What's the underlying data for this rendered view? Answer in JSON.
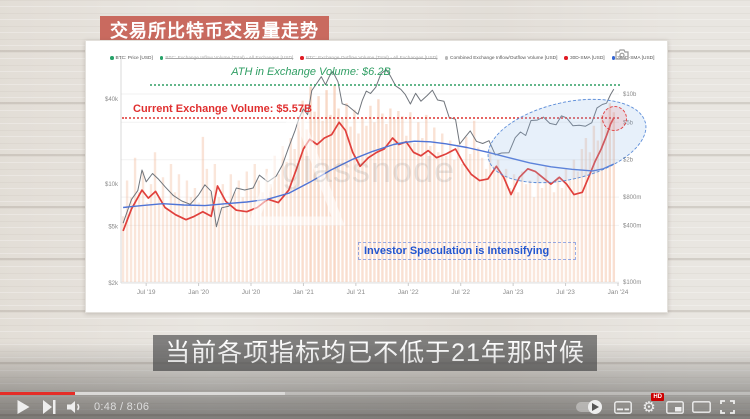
{
  "video": {
    "title_banner": "交易所比特币交易量走势",
    "caption": "当前各项指标均已不低于21年那时候"
  },
  "player": {
    "time_display": "0:48 / 8:06",
    "progress_percent": 10,
    "buffered_percent": 38,
    "settings_badge": "HD",
    "icons": [
      "play-icon",
      "next-icon",
      "volume-icon",
      "autoplay-toggle",
      "subtitles-icon",
      "settings-gear-icon",
      "miniplayer-icon",
      "theater-icon",
      "fullscreen-icon"
    ]
  },
  "chart": {
    "watermark": "glassnode",
    "legend": [
      {
        "label": "BTC: Price [USD]",
        "color": "#26a269",
        "disabled": false
      },
      {
        "label": "BTC: Exchange Inflow Volume (Total) - All Exchanges [USD]",
        "color": "#26a269",
        "disabled": true
      },
      {
        "label": "BTC: Exchange Outflow Volume (Total) - All Exchanges [USD]",
        "color": "#e01b24",
        "disabled": true
      },
      {
        "label": "Combined Exchange Inflow/Outflow Volume [USD]",
        "color": "#b8b8b8",
        "disabled": false
      },
      {
        "label": "30D-SMA [USD]",
        "color": "#e01b24",
        "disabled": false
      },
      {
        "label": "365D-SMA [USD]",
        "color": "#3465d4",
        "disabled": false
      }
    ]
  },
  "chart_data": {
    "type": "line",
    "subtype": "mixed line + volume bars, dual log axes",
    "x_axis": {
      "range_years": [
        2019.3,
        2024.05
      ],
      "ticks": [
        {
          "label": "Jul '19",
          "t": 2019.54
        },
        {
          "label": "Jan '20",
          "t": 2020.04
        },
        {
          "label": "Jul '20",
          "t": 2020.54
        },
        {
          "label": "Jan '21",
          "t": 2021.04
        },
        {
          "label": "Jul '21",
          "t": 2021.54
        },
        {
          "label": "Jan '22",
          "t": 2022.04
        },
        {
          "label": "Jul '22",
          "t": 2022.54
        },
        {
          "label": "Jan '23",
          "t": 2023.04
        },
        {
          "label": "Jul '23",
          "t": 2023.54
        },
        {
          "label": "Jan '24",
          "t": 2024.04
        }
      ]
    },
    "y_left": {
      "title": "BTC Price (USD)",
      "scale": "log",
      "ticks": [
        {
          "label": "$40k",
          "value": 40
        },
        {
          "label": "$10k",
          "value": 10
        },
        {
          "label": "$5k",
          "value": 5
        },
        {
          "label": "$2k",
          "value": 2
        }
      ]
    },
    "y_right": {
      "title": "Exchange Volume (USD)",
      "scale": "log",
      "ticks": [
        {
          "label": "$10b",
          "value": 10
        },
        {
          "label": "$5b",
          "value": 5
        },
        {
          "label": "$2b",
          "value": 2
        },
        {
          "label": "$800m",
          "value": 0.8
        },
        {
          "label": "$400m",
          "value": 0.4
        },
        {
          "label": "$100m",
          "value": 0.1
        }
      ]
    },
    "annotations": [
      {
        "id": "ath",
        "text": "ATH in Exchange Volume: $6.2B",
        "value": "$6.2B",
        "color": "#2f9e63"
      },
      {
        "id": "current",
        "text": "Current Exchange Volume: $5.57B",
        "value": "$5.57B",
        "color": "#e02f2f"
      },
      {
        "id": "speculation",
        "text": "Investor Speculation is Intensifying",
        "color": "#2356cf"
      }
    ],
    "series": [
      {
        "name": "BTC: Price [USD]",
        "type": "line",
        "axis": "left",
        "unit": "USD thousands",
        "color": "#70757c",
        "width": 1,
        "points": [
          [
            2019.32,
            5.3
          ],
          [
            2019.4,
            7.8
          ],
          [
            2019.46,
            9.0
          ],
          [
            2019.5,
            12.6
          ],
          [
            2019.54,
            10.4
          ],
          [
            2019.6,
            11.9
          ],
          [
            2019.66,
            10.8
          ],
          [
            2019.72,
            9.6
          ],
          [
            2019.8,
            8.3
          ],
          [
            2019.88,
            7.6
          ],
          [
            2019.96,
            7.2
          ],
          [
            2020.04,
            8.4
          ],
          [
            2020.1,
            9.9
          ],
          [
            2020.16,
            8.9
          ],
          [
            2020.21,
            5.0
          ],
          [
            2020.26,
            6.8
          ],
          [
            2020.33,
            7.0
          ],
          [
            2020.4,
            9.4
          ],
          [
            2020.48,
            9.1
          ],
          [
            2020.56,
            9.4
          ],
          [
            2020.62,
            11.6
          ],
          [
            2020.7,
            10.4
          ],
          [
            2020.78,
            11.4
          ],
          [
            2020.84,
            13.7
          ],
          [
            2020.9,
            18.3
          ],
          [
            2020.96,
            24.0
          ],
          [
            2021.0,
            29.5
          ],
          [
            2021.04,
            34.0
          ],
          [
            2021.08,
            31.0
          ],
          [
            2021.12,
            46.0
          ],
          [
            2021.17,
            52.0
          ],
          [
            2021.21,
            57.5
          ],
          [
            2021.25,
            50.5
          ],
          [
            2021.29,
            58.5
          ],
          [
            2021.32,
            62.5
          ],
          [
            2021.37,
            53.0
          ],
          [
            2021.41,
            37.0
          ],
          [
            2021.46,
            36.0
          ],
          [
            2021.52,
            33.0
          ],
          [
            2021.56,
            31.2
          ],
          [
            2021.6,
            39.0
          ],
          [
            2021.64,
            45.5
          ],
          [
            2021.68,
            43.8
          ],
          [
            2021.73,
            48.5
          ],
          [
            2021.78,
            60.5
          ],
          [
            2021.83,
            64.5
          ],
          [
            2021.87,
            58.0
          ],
          [
            2021.92,
            49.5
          ],
          [
            2021.97,
            46.8
          ],
          [
            2022.01,
            43.2
          ],
          [
            2022.06,
            36.9
          ],
          [
            2022.11,
            43.9
          ],
          [
            2022.16,
            38.6
          ],
          [
            2022.22,
            42.4
          ],
          [
            2022.27,
            46.2
          ],
          [
            2022.32,
            39.4
          ],
          [
            2022.38,
            38.6
          ],
          [
            2022.43,
            29.6
          ],
          [
            2022.49,
            28.8
          ],
          [
            2022.53,
            19.2
          ],
          [
            2022.58,
            21.4
          ],
          [
            2022.63,
            23.8
          ],
          [
            2022.69,
            20.1
          ],
          [
            2022.75,
            19.4
          ],
          [
            2022.81,
            20.3
          ],
          [
            2022.87,
            16.1
          ],
          [
            2022.93,
            16.6
          ],
          [
            2023.0,
            16.7
          ],
          [
            2023.06,
            21.3
          ],
          [
            2023.11,
            23.4
          ],
          [
            2023.16,
            22.1
          ],
          [
            2023.21,
            28.2
          ],
          [
            2023.27,
            28.4
          ],
          [
            2023.33,
            29.8
          ],
          [
            2023.39,
            26.9
          ],
          [
            2023.45,
            26.3
          ],
          [
            2023.5,
            30.4
          ],
          [
            2023.55,
            29.4
          ],
          [
            2023.61,
            25.9
          ],
          [
            2023.67,
            26.1
          ],
          [
            2023.73,
            25.7
          ],
          [
            2023.79,
            27.2
          ],
          [
            2023.84,
            34.6
          ],
          [
            2023.89,
            36.6
          ],
          [
            2023.93,
            37.4
          ],
          [
            2023.97,
            43.1
          ],
          [
            2024.0,
            47.0
          ]
        ]
      },
      {
        "name": "30D-SMA [USD]",
        "type": "line",
        "axis": "right",
        "unit": "USD billions",
        "color": "#e0403c",
        "width": 1.7,
        "points": [
          [
            2019.32,
            0.35
          ],
          [
            2019.4,
            0.6
          ],
          [
            2019.5,
            0.95
          ],
          [
            2019.56,
            0.78
          ],
          [
            2019.63,
            0.92
          ],
          [
            2019.72,
            0.62
          ],
          [
            2019.82,
            0.52
          ],
          [
            2019.92,
            0.46
          ],
          [
            2020.0,
            0.5
          ],
          [
            2020.08,
            0.56
          ],
          [
            2020.16,
            0.5
          ],
          [
            2020.22,
            1.05
          ],
          [
            2020.3,
            0.72
          ],
          [
            2020.4,
            0.58
          ],
          [
            2020.5,
            0.56
          ],
          [
            2020.6,
            0.62
          ],
          [
            2020.7,
            0.76
          ],
          [
            2020.8,
            0.7
          ],
          [
            2020.9,
            0.95
          ],
          [
            2020.97,
            1.55
          ],
          [
            2021.04,
            2.6
          ],
          [
            2021.1,
            3.3
          ],
          [
            2021.17,
            2.9
          ],
          [
            2021.24,
            3.4
          ],
          [
            2021.31,
            3.7
          ],
          [
            2021.38,
            5.0
          ],
          [
            2021.44,
            4.1
          ],
          [
            2021.51,
            2.4
          ],
          [
            2021.58,
            1.7
          ],
          [
            2021.66,
            2.1
          ],
          [
            2021.74,
            2.4
          ],
          [
            2021.81,
            2.6
          ],
          [
            2021.89,
            3.4
          ],
          [
            2021.95,
            2.9
          ],
          [
            2022.02,
            3.1
          ],
          [
            2022.09,
            2.4
          ],
          [
            2022.16,
            2.2
          ],
          [
            2022.23,
            2.5
          ],
          [
            2022.31,
            2.1
          ],
          [
            2022.4,
            2.3
          ],
          [
            2022.49,
            2.6
          ],
          [
            2022.57,
            1.8
          ],
          [
            2022.64,
            1.4
          ],
          [
            2022.72,
            1.2
          ],
          [
            2022.8,
            1.25
          ],
          [
            2022.88,
            1.7
          ],
          [
            2022.95,
            1.3
          ],
          [
            2023.02,
            0.85
          ],
          [
            2023.1,
            1.3
          ],
          [
            2023.18,
            1.6
          ],
          [
            2023.25,
            1.5
          ],
          [
            2023.32,
            1.3
          ],
          [
            2023.4,
            1.1
          ],
          [
            2023.48,
            1.3
          ],
          [
            2023.55,
            1.1
          ],
          [
            2023.62,
            0.85
          ],
          [
            2023.7,
            0.9
          ],
          [
            2023.76,
            1.3
          ],
          [
            2023.82,
            1.9
          ],
          [
            2023.88,
            2.6
          ],
          [
            2023.93,
            3.6
          ],
          [
            2023.97,
            4.8
          ],
          [
            2024.0,
            5.57
          ]
        ]
      },
      {
        "name": "365D-SMA [USD]",
        "type": "line",
        "axis": "right",
        "unit": "USD billions",
        "color": "#4f74d6",
        "width": 1.4,
        "points": [
          [
            2019.32,
            0.62
          ],
          [
            2019.5,
            0.65
          ],
          [
            2019.7,
            0.68
          ],
          [
            2019.9,
            0.66
          ],
          [
            2020.1,
            0.65
          ],
          [
            2020.3,
            0.68
          ],
          [
            2020.5,
            0.71
          ],
          [
            2020.7,
            0.76
          ],
          [
            2020.9,
            0.88
          ],
          [
            2021.1,
            1.15
          ],
          [
            2021.3,
            1.55
          ],
          [
            2021.5,
            2.0
          ],
          [
            2021.7,
            2.45
          ],
          [
            2021.9,
            2.9
          ],
          [
            2022.0,
            3.05
          ],
          [
            2022.1,
            3.15
          ],
          [
            2022.25,
            3.1
          ],
          [
            2022.4,
            2.95
          ],
          [
            2022.6,
            2.7
          ],
          [
            2022.8,
            2.4
          ],
          [
            2023.0,
            2.1
          ],
          [
            2023.2,
            1.85
          ],
          [
            2023.4,
            1.68
          ],
          [
            2023.6,
            1.58
          ],
          [
            2023.8,
            1.52
          ],
          [
            2023.9,
            1.6
          ],
          [
            2024.0,
            1.8
          ]
        ]
      },
      {
        "name": "Combined Exchange Inflow/Outflow Volume [USD]",
        "type": "bar",
        "axis": "right",
        "unit": "USD billions",
        "color": "#f2b491",
        "x_start": 2019.32,
        "x_step": 0.03805,
        "values": [
          0.5,
          1.2,
          0.8,
          2.1,
          0.9,
          1.5,
          0.7,
          1.1,
          2.4,
          0.8,
          1.3,
          0.6,
          1.8,
          0.9,
          1.4,
          0.7,
          1.2,
          0.8,
          1.0,
          0.7,
          3.5,
          1.6,
          0.9,
          1.8,
          0.8,
          1.1,
          0.7,
          1.4,
          0.9,
          1.2,
          0.8,
          1.5,
          1.0,
          1.8,
          1.2,
          0.9,
          1.6,
          1.1,
          2.2,
          1.4,
          2.8,
          1.9,
          3.4,
          2.6,
          5.0,
          8.5,
          4.2,
          12.0,
          6.5,
          9.5,
          5.2,
          11.0,
          6.0,
          12.4,
          7.0,
          5.5,
          8.0,
          4.5,
          6.8,
          3.8,
          5.6,
          4.6,
          7.5,
          5.0,
          8.8,
          6.2,
          4.8,
          7.0,
          5.4,
          6.6,
          5.8,
          3.6,
          6.4,
          3.0,
          5.0,
          3.4,
          6.0,
          2.8,
          4.4,
          2.4,
          3.8,
          2.2,
          3.2,
          2.0,
          2.9,
          1.8,
          3.5,
          2.3,
          5.2,
          2.7,
          2.1,
          1.6,
          2.5,
          1.7,
          2.0,
          1.4,
          1.6,
          1.0,
          1.4,
          0.9,
          1.5,
          1.1,
          1.2,
          0.8,
          1.4,
          1.0,
          1.7,
          1.1,
          0.9,
          1.3,
          1.0,
          1.6,
          1.2,
          2.0,
          1.5,
          2.6,
          3.4,
          2.4,
          4.6,
          3.2,
          6.0,
          4.4,
          8.0,
          6.4
        ]
      }
    ]
  }
}
